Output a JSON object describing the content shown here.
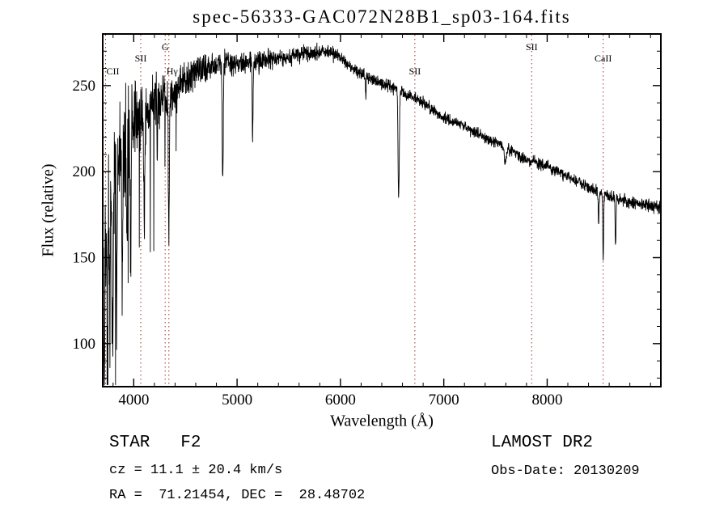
{
  "annotations": {
    "class_label": "STAR   F2",
    "survey": "LAMOST DR2",
    "cz": "cz = 11.1 ± 20.4 km/s",
    "obs_date": "Obs-Date: 20130209",
    "radec": "RA =  71.21454, DEC =  28.48702"
  },
  "chart_data": {
    "type": "line",
    "title": "spec-56333-GAC072N28B1_sp03-164.fits",
    "xlabel": "Wavelength (Å)",
    "ylabel": "Flux (relative)",
    "xlim": [
      3700,
      9100
    ],
    "ylim": [
      75,
      280
    ],
    "x_ticks": [
      4000,
      5000,
      6000,
      7000,
      8000
    ],
    "y_ticks": [
      100,
      150,
      200,
      250
    ],
    "x_minor_step": 200,
    "y_minor_step": 10,
    "grid": false,
    "legend": false,
    "line_color": "#000000",
    "marker_line_color": "#a03333",
    "description": "Noisy blue end rising from ~3700 Å, broad flux maximum ~270 near 5800 Å, smooth decline to ~179 at the red end, with Balmer, SII and CaII absorption features marked by red dotted lines.",
    "spectral_markers": [
      {
        "label": "CII",
        "wavelength": 3727,
        "level": 2,
        "dx": 9
      },
      {
        "label": "SII",
        "wavelength": 4068,
        "level": 1,
        "dx": 0
      },
      {
        "label": "G",
        "wavelength": 4304,
        "level": 0,
        "dx": 0
      },
      {
        "label": "Hγ",
        "wavelength": 4340,
        "level": 2,
        "dx": 4
      },
      {
        "label": "SII",
        "wavelength": 6720,
        "level": 2,
        "dx": 0
      },
      {
        "label": "SII",
        "wavelength": 7850,
        "level": 0,
        "dx": 0
      },
      {
        "label": "CaII",
        "wavelength": 8542,
        "level": 1,
        "dx": 0
      }
    ],
    "continuum": [
      [
        3700,
        152
      ],
      [
        3720,
        160
      ],
      [
        3740,
        168
      ],
      [
        3760,
        175
      ],
      [
        3780,
        182
      ],
      [
        3800,
        190
      ],
      [
        3830,
        200
      ],
      [
        3860,
        208
      ],
      [
        3900,
        216
      ],
      [
        3950,
        222
      ],
      [
        4000,
        227
      ],
      [
        4050,
        231
      ],
      [
        4100,
        234
      ],
      [
        4150,
        237
      ],
      [
        4200,
        239
      ],
      [
        4250,
        241
      ],
      [
        4300,
        242
      ],
      [
        4350,
        244
      ],
      [
        4400,
        247
      ],
      [
        4450,
        250
      ],
      [
        4500,
        252
      ],
      [
        4550,
        255
      ],
      [
        4600,
        257
      ],
      [
        4650,
        259
      ],
      [
        4700,
        260
      ],
      [
        4800,
        262
      ],
      [
        4900,
        263
      ],
      [
        5000,
        262
      ],
      [
        5100,
        263
      ],
      [
        5200,
        264
      ],
      [
        5300,
        265
      ],
      [
        5400,
        266
      ],
      [
        5500,
        267
      ],
      [
        5600,
        268
      ],
      [
        5700,
        269
      ],
      [
        5800,
        270
      ],
      [
        5900,
        269
      ],
      [
        6000,
        266
      ],
      [
        6100,
        261
      ],
      [
        6200,
        257
      ],
      [
        6300,
        254
      ],
      [
        6400,
        251
      ],
      [
        6500,
        249
      ],
      [
        6600,
        246
      ],
      [
        6700,
        243
      ],
      [
        6800,
        240
      ],
      [
        6900,
        236
      ],
      [
        7000,
        231
      ],
      [
        7100,
        229
      ],
      [
        7200,
        226
      ],
      [
        7300,
        223
      ],
      [
        7400,
        220
      ],
      [
        7500,
        217
      ],
      [
        7600,
        214
      ],
      [
        7700,
        210
      ],
      [
        7800,
        207
      ],
      [
        7900,
        205
      ],
      [
        8000,
        203
      ],
      [
        8100,
        200
      ],
      [
        8200,
        197
      ],
      [
        8300,
        194
      ],
      [
        8400,
        191
      ],
      [
        8500,
        188
      ],
      [
        8600,
        186
      ],
      [
        8700,
        184
      ],
      [
        8800,
        182
      ],
      [
        8900,
        181
      ],
      [
        9000,
        180
      ],
      [
        9100,
        179
      ]
    ],
    "absorption_lines": [
      {
        "wl": 3715,
        "depth": 85,
        "sigma": 4
      },
      {
        "wl": 3745,
        "depth": 75,
        "sigma": 3
      },
      {
        "wl": 3770,
        "depth": 60,
        "sigma": 3
      },
      {
        "wl": 3798,
        "depth": 95,
        "sigma": 4
      },
      {
        "wl": 3835,
        "depth": 80,
        "sigma": 4
      },
      {
        "wl": 3889,
        "depth": 90,
        "sigma": 4
      },
      {
        "wl": 3933,
        "depth": 55,
        "sigma": 4
      },
      {
        "wl": 3970,
        "depth": 85,
        "sigma": 4
      },
      {
        "wl": 4102,
        "depth": 68,
        "sigma": 5
      },
      {
        "wl": 4227,
        "depth": 35,
        "sigma": 3
      },
      {
        "wl": 4340,
        "depth": 84,
        "sigma": 5
      },
      {
        "wl": 4861,
        "depth": 70,
        "sigma": 5
      },
      {
        "wl": 5150,
        "depth": 45,
        "sigma": 4
      },
      {
        "wl": 6245,
        "depth": 12,
        "sigma": 4
      },
      {
        "wl": 6563,
        "depth": 62,
        "sigma": 6
      },
      {
        "wl": 7594,
        "depth": 10,
        "sigma": 8
      },
      {
        "wl": 8498,
        "depth": 20,
        "sigma": 4
      },
      {
        "wl": 8542,
        "depth": 38,
        "sigma": 4
      },
      {
        "wl": 8662,
        "depth": 30,
        "sigma": 4
      }
    ],
    "noise_amp": [
      [
        3700,
        30
      ],
      [
        3850,
        27
      ],
      [
        4000,
        21
      ],
      [
        4150,
        15
      ],
      [
        4300,
        12
      ],
      [
        4500,
        9
      ],
      [
        4700,
        7
      ],
      [
        5000,
        5.5
      ],
      [
        5400,
        4.2
      ],
      [
        6000,
        3.2
      ],
      [
        6600,
        2.8
      ],
      [
        7600,
        2.6
      ],
      [
        9100,
        3.0
      ]
    ]
  }
}
